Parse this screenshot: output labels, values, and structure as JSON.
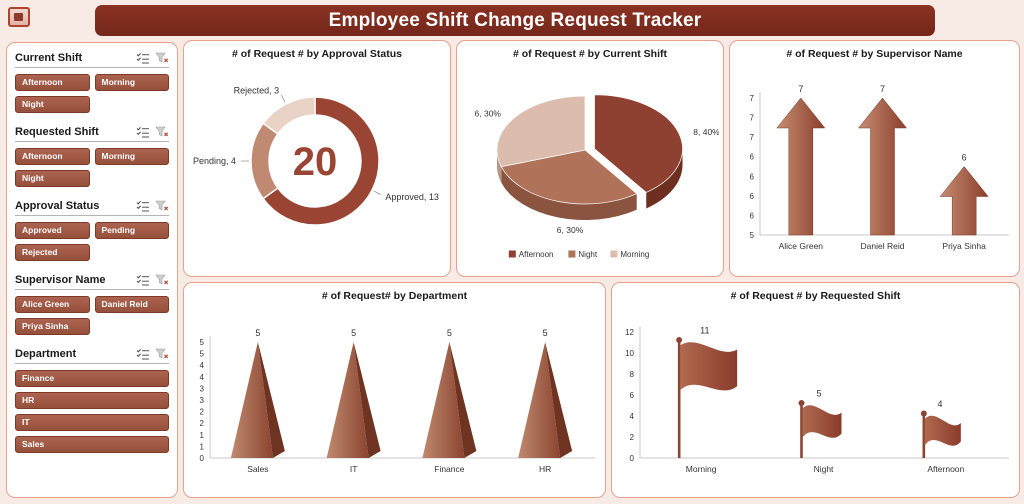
{
  "header": {
    "title": "Employee Shift Change Request Tracker"
  },
  "colors": {
    "page_bg": "#f8eae4",
    "banner": "#7c2b1d",
    "panel_border": "#e8a18e",
    "brick_dark": "#8e4130",
    "brick_mid": "#b07258",
    "brick_light": "#dcbcad",
    "slicer_button": "#a05a46"
  },
  "slicers": [
    {
      "title": "Current Shift",
      "cols": 2,
      "items": [
        "Afternoon",
        "Morning",
        "Night"
      ]
    },
    {
      "title": "Requested Shift",
      "cols": 2,
      "items": [
        "Afternoon",
        "Morning",
        "Night"
      ]
    },
    {
      "title": "Approval Status",
      "cols": 2,
      "items": [
        "Approved",
        "Pending",
        "Rejected"
      ]
    },
    {
      "title": "Supervisor Name",
      "cols": 2,
      "items": [
        "Alice Green",
        "Daniel Reid",
        "Priya Sinha"
      ]
    },
    {
      "title": "Department",
      "cols": 1,
      "items": [
        "Finance",
        "HR",
        "IT",
        "Sales"
      ]
    }
  ],
  "chart_data": [
    {
      "type": "donut",
      "title": "# of Request # by Approval Status",
      "center_total": "20",
      "segments": [
        {
          "label": "Approved",
          "value": 13
        },
        {
          "label": "Pending",
          "value": 4
        },
        {
          "label": "Rejected",
          "value": 3
        }
      ],
      "labels": [
        "Approved, 13",
        "Pending, 4",
        "Rejected, 3"
      ],
      "colors": [
        "#9a4533",
        "#c08a72",
        "#e9d3c7"
      ]
    },
    {
      "type": "pie",
      "title": "# of Request # by Current Shift",
      "segments": [
        {
          "label": "Afternoon",
          "value": 8,
          "pct": "40%"
        },
        {
          "label": "Night",
          "value": 6,
          "pct": "30%"
        },
        {
          "label": "Morning",
          "value": 6,
          "pct": "30%"
        }
      ],
      "labels": [
        "8, 40%",
        "6, 30%",
        "6, 30%"
      ],
      "legend": [
        "Afternoon",
        "Night",
        "Morning"
      ],
      "colors": [
        "#8e4130",
        "#b07258",
        "#dcbcad"
      ],
      "wall_colors": [
        "#6e2f21",
        "#8a5440",
        "#b99684"
      ]
    },
    {
      "type": "bar",
      "style": "arrow",
      "title": "# of Request # by Supervisor Name",
      "categories": [
        "Alice Green",
        "Daniel Reid",
        "Priya Sinha"
      ],
      "values": [
        7,
        7,
        6
      ],
      "ylim": [
        5,
        7
      ],
      "yticks": [
        "7",
        "7",
        "7",
        "6",
        "6",
        "6",
        "6",
        "5"
      ]
    },
    {
      "type": "bar",
      "style": "pyramid",
      "title": "# of Request#  by Department",
      "categories": [
        "Sales",
        "IT",
        "Finance",
        "HR"
      ],
      "values": [
        5,
        5,
        5,
        5
      ],
      "ylim": [
        0,
        5
      ],
      "yticks": [
        "5",
        "5",
        "4",
        "4",
        "3",
        "3",
        "2",
        "2",
        "1",
        "1",
        "0"
      ]
    },
    {
      "type": "bar",
      "style": "flag",
      "title": "# of Request # by Requested Shift",
      "categories": [
        "Morning",
        "Night",
        "Afternoon"
      ],
      "values": [
        11,
        5,
        4
      ],
      "ylim": [
        0,
        12
      ],
      "yticks": [
        "12",
        "10",
        "8",
        "6",
        "4",
        "2",
        "0"
      ]
    }
  ]
}
